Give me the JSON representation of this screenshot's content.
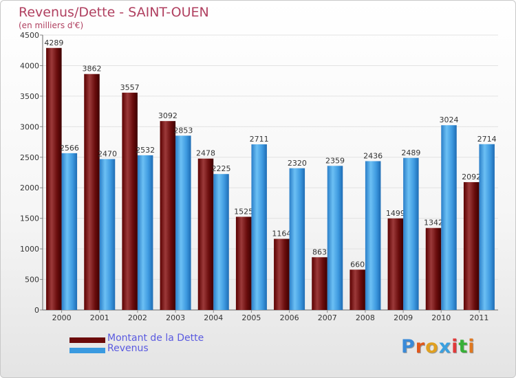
{
  "header": {
    "title": "Revenus/Dette - SAINT-OUEN",
    "subtitle": "(en milliers d'€)"
  },
  "legend": {
    "items": [
      {
        "label": "Montant de la Dette",
        "color": "#6b0a0a"
      },
      {
        "label": "Revenus",
        "color": "#3a9ae0"
      }
    ]
  },
  "logo": {
    "text": "Proxiti",
    "colors": [
      "#3a8ad8",
      "#e0581c",
      "#e0a020",
      "#3aa0e0",
      "#e03a3a",
      "#38b038",
      "#e07820"
    ]
  },
  "chart_data": {
    "type": "bar",
    "categories": [
      "2000",
      "2001",
      "2002",
      "2003",
      "2004",
      "2005",
      "2006",
      "2007",
      "2008",
      "2009",
      "2010",
      "2011"
    ],
    "series": [
      {
        "name": "Montant de la Dette",
        "color": "#6b0a0a",
        "values": [
          4289,
          3862,
          3557,
          3092,
          2478,
          1525,
          1164,
          863,
          660,
          1499,
          1342,
          2092
        ]
      },
      {
        "name": "Revenus",
        "color": "#3a9ae0",
        "values": [
          2566,
          2470,
          2532,
          2853,
          2225,
          2711,
          2320,
          2359,
          2436,
          2489,
          3024,
          2714
        ]
      }
    ],
    "ylim": [
      0,
      4500
    ],
    "yticks": [
      0,
      500,
      1000,
      1500,
      2000,
      2500,
      3000,
      3500,
      4000,
      4500
    ],
    "grid": true,
    "legend_position": "bottom-left"
  }
}
